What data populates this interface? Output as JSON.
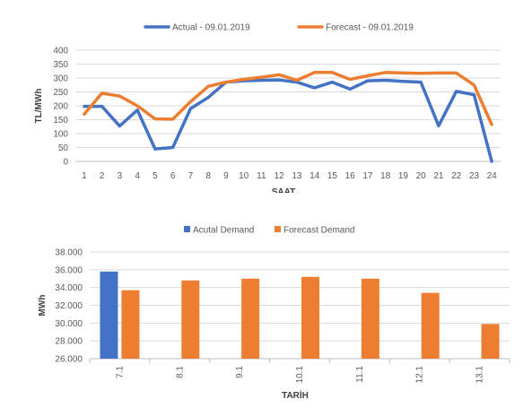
{
  "colors": {
    "actual": "#4472c4",
    "forecast": "#ed7d31"
  },
  "chart_data": [
    {
      "type": "line",
      "title": "",
      "xlabel": "SAAT",
      "ylabel": "TL/MWh",
      "ylim": [
        0,
        400
      ],
      "yticks": [
        "0",
        "50",
        "100",
        "150",
        "200",
        "250",
        "300",
        "350",
        "400"
      ],
      "categories": [
        "1",
        "2",
        "3",
        "4",
        "5",
        "6",
        "7",
        "8",
        "9",
        "10",
        "11",
        "12",
        "13",
        "14",
        "15",
        "16",
        "17",
        "18",
        "19",
        "20",
        "21",
        "22",
        "23",
        "24"
      ],
      "legend_position": "top",
      "grid": true,
      "series": [
        {
          "name": "Actual - 09.01.2019",
          "values": [
            198,
            198,
            127,
            185,
            45,
            50,
            190,
            230,
            285,
            290,
            292,
            293,
            285,
            265,
            285,
            260,
            290,
            292,
            288,
            285,
            128,
            252,
            240,
            0
          ]
        },
        {
          "name": "Forecast - 09.01.2019",
          "values": [
            170,
            245,
            235,
            200,
            153,
            152,
            215,
            270,
            285,
            295,
            303,
            312,
            292,
            320,
            320,
            295,
            308,
            320,
            318,
            317,
            318,
            318,
            275,
            133
          ]
        }
      ]
    },
    {
      "type": "bar",
      "title": "",
      "xlabel": "TARİH",
      "ylabel": "MWh",
      "ylim": [
        26000,
        38000
      ],
      "yticks": [
        "26.000",
        "28.000",
        "30.000",
        "32.000",
        "34.000",
        "36.000",
        "38.000"
      ],
      "categories": [
        "7.1",
        "8.1",
        "9.1",
        "10.1",
        "11.1",
        "12.1",
        "13.1"
      ],
      "legend_position": "top",
      "grid": true,
      "series": [
        {
          "name": "Acutal Demand",
          "values": [
            35800,
            null,
            null,
            null,
            null,
            null,
            null
          ]
        },
        {
          "name": "Forecast Demand",
          "values": [
            33700,
            34800,
            35000,
            35200,
            35000,
            33400,
            29900
          ]
        }
      ]
    }
  ]
}
